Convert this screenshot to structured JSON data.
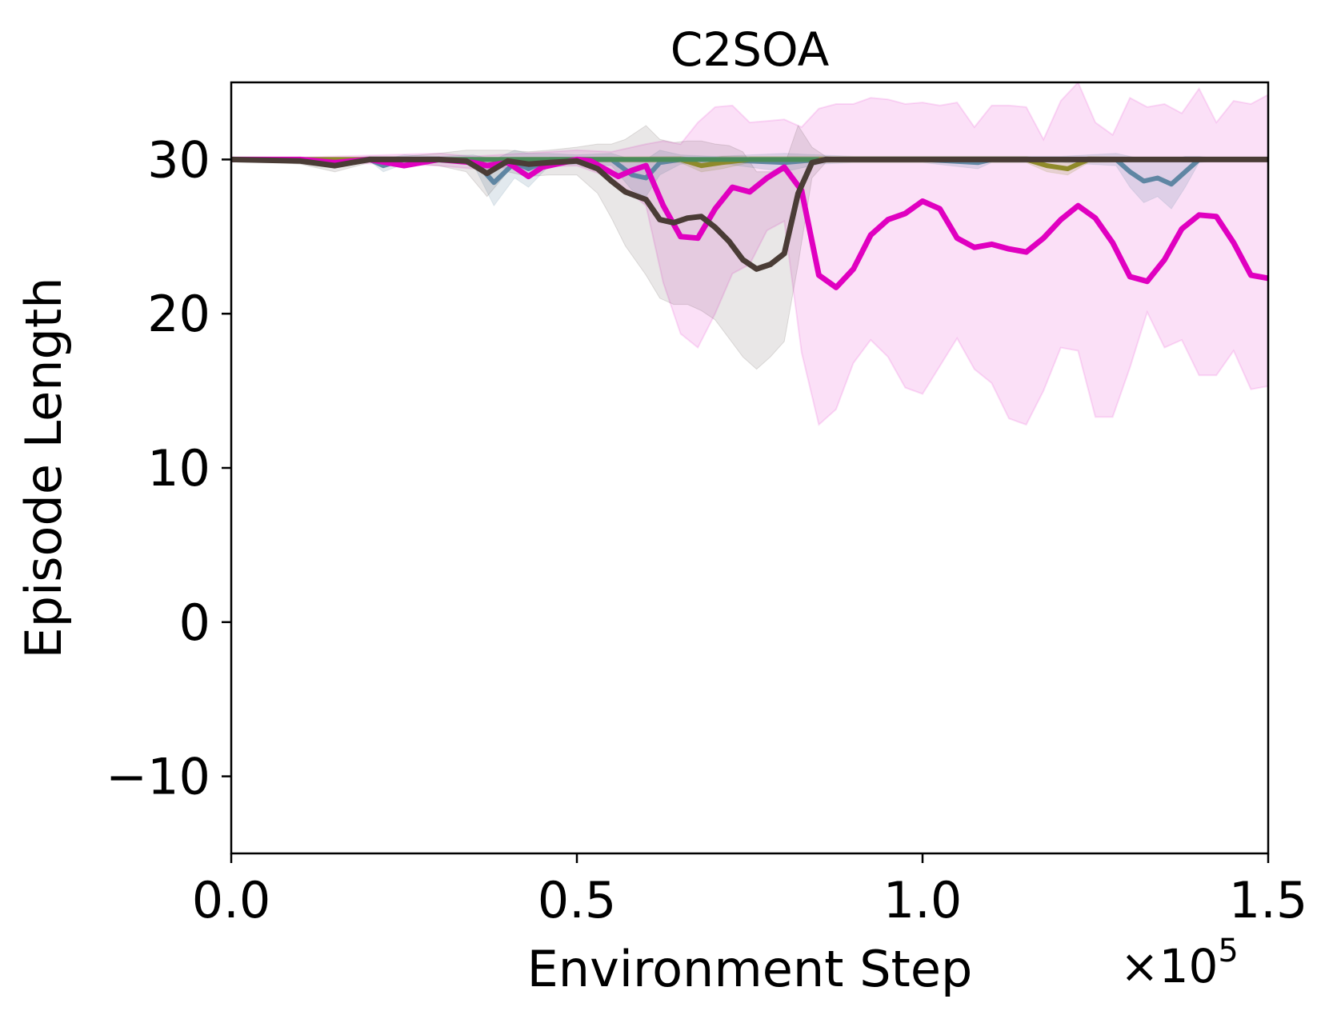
{
  "chart_data": {
    "type": "line",
    "title": "C2SOA",
    "xlabel": "Environment Step",
    "ylabel": "Episode Length",
    "x_multiplier_label": "×10",
    "x_multiplier_exp": "5",
    "xlim": [
      0.0,
      1.5
    ],
    "ylim": [
      -15,
      35
    ],
    "xticks": [
      0.0,
      0.5,
      1.0,
      1.5
    ],
    "xtick_labels": [
      "0.0",
      "0.5",
      "1.0",
      "1.5"
    ],
    "yticks": [
      -10,
      0,
      10,
      20,
      30
    ],
    "ytick_labels": [
      "−10",
      "0",
      "10",
      "20",
      "30"
    ],
    "grid": false,
    "series": [
      {
        "name": "blue-gray",
        "color": "#5f86a3",
        "x": [
          0.0,
          0.2,
          0.22,
          0.25,
          0.3,
          0.35,
          0.38,
          0.41,
          0.43,
          0.46,
          0.5,
          0.55,
          0.58,
          0.6,
          0.62,
          0.65,
          0.7,
          0.8,
          0.85,
          0.9,
          1.0,
          1.08,
          1.1,
          1.15,
          1.2,
          1.28,
          1.3,
          1.32,
          1.34,
          1.36,
          1.38,
          1.4,
          1.42,
          1.5
        ],
        "y": [
          30,
          30,
          29.6,
          30,
          30,
          30,
          28.5,
          29.8,
          29.4,
          30,
          30,
          30,
          29.0,
          28.8,
          29.8,
          30,
          30,
          29.8,
          30,
          30,
          30,
          29.8,
          30,
          30,
          30,
          30,
          29.2,
          28.6,
          28.8,
          28.4,
          29.2,
          30,
          30,
          30
        ],
        "band_lower": [
          30,
          29.9,
          29.2,
          29.7,
          29.8,
          29.7,
          27.0,
          28.8,
          28.2,
          29.6,
          29.7,
          29.6,
          28.0,
          27.6,
          29.0,
          29.7,
          29.8,
          29.2,
          29.7,
          29.8,
          29.8,
          29.4,
          29.8,
          29.8,
          29.8,
          29.6,
          28.2,
          27.2,
          27.6,
          26.8,
          28.2,
          29.8,
          29.9,
          30
        ],
        "band_upper": [
          30,
          30.1,
          30.0,
          30.3,
          30.2,
          30.3,
          30.0,
          30.6,
          30.4,
          30.4,
          30.3,
          30.4,
          30.0,
          30.0,
          30.6,
          30.3,
          30.2,
          30.4,
          30.3,
          30.2,
          30.2,
          30.2,
          30.2,
          30.2,
          30.2,
          30.4,
          30.2,
          30.0,
          30.0,
          30.0,
          30.2,
          30.2,
          30.1,
          30
        ]
      },
      {
        "name": "olive",
        "color": "#8f8a2a",
        "x": [
          0.0,
          0.65,
          0.68,
          0.71,
          0.75,
          1.15,
          1.18,
          1.21,
          1.24,
          1.5
        ],
        "y": [
          30,
          30,
          29.6,
          29.8,
          30,
          30,
          29.6,
          29.4,
          30,
          30
        ],
        "band_lower": [
          30,
          29.8,
          29.2,
          29.4,
          29.8,
          29.8,
          29.2,
          29.0,
          29.8,
          30
        ],
        "band_upper": [
          30,
          30.2,
          30.0,
          30.2,
          30.2,
          30.2,
          30.0,
          29.8,
          30.2,
          30
        ]
      },
      {
        "name": "green",
        "color": "#4a8a5a",
        "x": [
          0.3,
          0.45,
          0.6,
          0.75,
          0.85
        ],
        "y": [
          30,
          30,
          30,
          30,
          30
        ],
        "band_lower": [
          30,
          30,
          30,
          30,
          30
        ],
        "band_upper": [
          30,
          30,
          30,
          30,
          30
        ]
      },
      {
        "name": "magenta",
        "color": "#e000c0",
        "x": [
          0.0,
          0.1,
          0.15,
          0.2,
          0.25,
          0.3,
          0.35,
          0.37,
          0.4,
          0.43,
          0.45,
          0.48,
          0.5,
          0.52,
          0.54,
          0.56,
          0.58,
          0.6,
          0.625,
          0.65,
          0.675,
          0.7,
          0.725,
          0.75,
          0.775,
          0.8,
          0.825,
          0.85,
          0.875,
          0.9,
          0.925,
          0.95,
          0.975,
          1.0,
          1.025,
          1.05,
          1.075,
          1.1,
          1.125,
          1.15,
          1.175,
          1.2,
          1.225,
          1.25,
          1.275,
          1.3,
          1.325,
          1.35,
          1.375,
          1.4,
          1.425,
          1.45,
          1.475,
          1.5
        ],
        "y": [
          30,
          30,
          29.8,
          30,
          29.6,
          30,
          29.8,
          29.6,
          29.8,
          28.9,
          29.5,
          29.8,
          30,
          29.9,
          29.4,
          28.9,
          29.3,
          29.6,
          27.0,
          25.0,
          24.9,
          26.8,
          28.2,
          27.9,
          28.8,
          29.5,
          28.0,
          22.5,
          21.7,
          22.9,
          25.1,
          26.1,
          26.5,
          27.3,
          26.8,
          24.9,
          24.3,
          24.5,
          24.2,
          24.0,
          24.9,
          26.1,
          27.0,
          26.2,
          24.6,
          22.4,
          22.1,
          23.5,
          25.5,
          26.4,
          26.3,
          24.6,
          22.5,
          22.3
        ]
      },
      {
        "name": "dark-brown",
        "color": "#4a3c36",
        "x": [
          0.0,
          0.1,
          0.15,
          0.2,
          0.25,
          0.3,
          0.34,
          0.37,
          0.4,
          0.43,
          0.46,
          0.5,
          0.53,
          0.55,
          0.57,
          0.6,
          0.62,
          0.64,
          0.66,
          0.68,
          0.7,
          0.72,
          0.74,
          0.76,
          0.78,
          0.8,
          0.82,
          0.84,
          0.86,
          0.9,
          1.0,
          1.5
        ],
        "y": [
          30,
          29.9,
          29.6,
          30,
          30,
          30,
          29.9,
          29.1,
          29.9,
          29.7,
          29.8,
          29.9,
          29.4,
          28.6,
          27.9,
          27.4,
          26.1,
          25.9,
          26.2,
          26.3,
          25.6,
          24.7,
          23.5,
          22.9,
          23.2,
          23.9,
          27.8,
          29.8,
          30,
          30,
          30,
          30
        ],
        "band_lower": [
          30,
          29.7,
          29.2,
          29.8,
          29.8,
          29.6,
          29.2,
          27.6,
          29.2,
          28.9,
          29.0,
          29.0,
          27.8,
          26.2,
          24.4,
          22.5,
          21.0,
          20.6,
          20.6,
          20.2,
          19.6,
          18.4,
          17.2,
          16.4,
          17.2,
          18.2,
          23.2,
          28.8,
          29.8,
          30,
          30,
          30
        ],
        "band_upper": [
          30,
          30.1,
          30.0,
          30.2,
          30.2,
          30.4,
          30.6,
          30.6,
          30.6,
          30.5,
          30.6,
          30.8,
          31.0,
          31.0,
          31.3,
          32.2,
          31.3,
          31.1,
          31.2,
          31.2,
          31.0,
          30.9,
          30.5,
          29.2,
          29.2,
          29.6,
          32.2,
          30.8,
          30.2,
          30,
          30,
          30
        ]
      }
    ],
    "magenta_band": {
      "x": [
        0.0,
        0.3,
        0.35,
        0.5,
        0.55,
        0.6,
        0.625,
        0.65,
        0.675,
        0.7,
        0.725,
        0.75,
        0.775,
        0.8,
        0.825,
        0.85,
        0.875,
        0.9,
        0.925,
        0.95,
        0.975,
        1.0,
        1.025,
        1.05,
        1.075,
        1.1,
        1.125,
        1.15,
        1.175,
        1.2,
        1.225,
        1.25,
        1.275,
        1.3,
        1.325,
        1.35,
        1.375,
        1.4,
        1.425,
        1.45,
        1.475,
        1.5
      ],
      "lower": [
        30,
        29.6,
        29.4,
        29.6,
        28.8,
        27.0,
        22.0,
        18.7,
        17.8,
        20.0,
        22.6,
        23.2,
        25.4,
        26.0,
        17.5,
        12.8,
        13.8,
        16.8,
        18.3,
        17.2,
        15.2,
        14.8,
        16.6,
        18.4,
        16.4,
        15.5,
        13.2,
        12.8,
        15.0,
        17.8,
        17.6,
        13.3,
        13.3,
        16.5,
        20.1,
        17.8,
        18.3,
        16.0,
        16.0,
        17.6,
        15.1,
        15.3
      ],
      "upper": [
        30,
        30.4,
        30.2,
        30.6,
        30.5,
        31.0,
        31.2,
        31.0,
        32.4,
        33.4,
        33.5,
        32.4,
        32.5,
        32.6,
        32.1,
        33.3,
        33.6,
        33.6,
        34.0,
        33.9,
        33.6,
        33.7,
        33.5,
        33.7,
        32.1,
        33.5,
        33.5,
        33.4,
        31.3,
        33.8,
        35.2,
        32.4,
        31.6,
        34.0,
        33.4,
        33.6,
        33.0,
        34.6,
        32.4,
        33.8,
        33.6,
        34.2
      ]
    }
  }
}
